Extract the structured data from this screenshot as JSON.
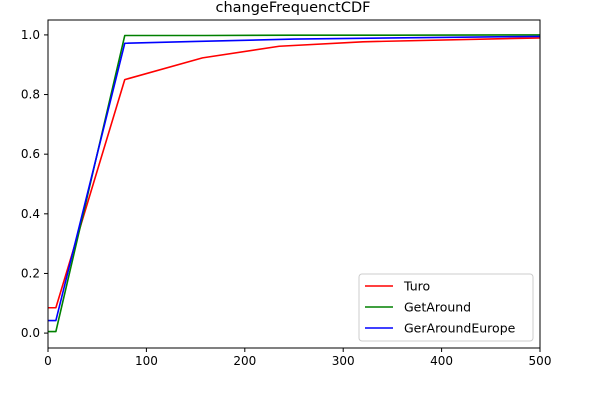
{
  "chart_data": {
    "type": "line",
    "title": "changeFrequenctCDF",
    "xlabel": "",
    "ylabel": "",
    "xlim": [
      0,
      500
    ],
    "ylim": [
      -0.05,
      1.05
    ],
    "xticks": [
      0,
      100,
      200,
      300,
      400,
      500
    ],
    "yticks": [
      0.0,
      0.2,
      0.4,
      0.6,
      0.8,
      1.0
    ],
    "xtick_labels": [
      "0",
      "100",
      "200",
      "300",
      "400",
      "500"
    ],
    "ytick_labels": [
      "0.0",
      "0.2",
      "0.4",
      "0.6",
      "0.8",
      "1.0"
    ],
    "grid": false,
    "legend_position": "bottom-right",
    "series": [
      {
        "name": "Turo",
        "color": "#ff0000",
        "x": [
          0,
          8,
          78,
          157,
          235,
          320,
          500
        ],
        "y": [
          0.085,
          0.085,
          0.85,
          0.923,
          0.962,
          0.977,
          0.99
        ]
      },
      {
        "name": "GetAround",
        "color": "#008000",
        "x": [
          0,
          8,
          78,
          160,
          250,
          350,
          500
        ],
        "y": [
          0.005,
          0.005,
          0.998,
          0.998,
          0.999,
          0.999,
          1.0
        ]
      },
      {
        "name": "GerAroundEurope",
        "color": "#0000ff",
        "x": [
          0,
          8,
          78,
          150,
          250,
          350,
          500
        ],
        "y": [
          0.042,
          0.042,
          0.972,
          0.978,
          0.986,
          0.99,
          0.995
        ]
      }
    ]
  }
}
